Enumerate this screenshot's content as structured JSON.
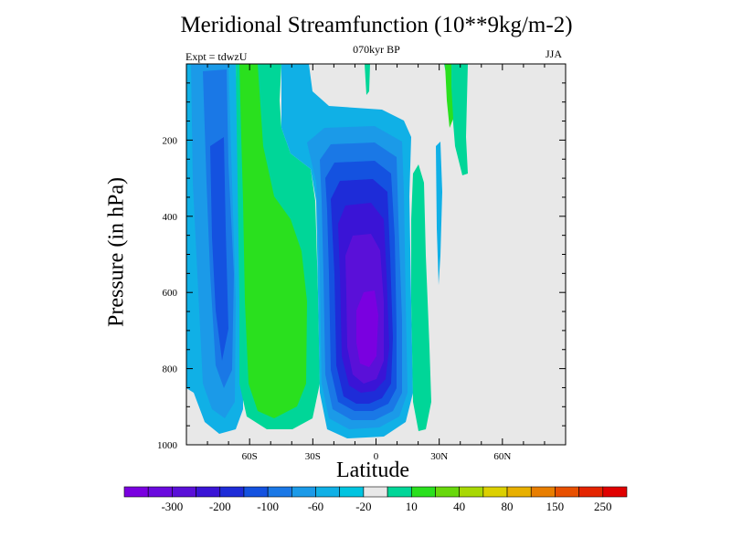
{
  "title": "Meridional Streamfunction (10**9kg/m-2)",
  "subtitle": "070kyr BP",
  "experiment_label": "Expt = tdwzU",
  "season": "JJA",
  "chart_data": {
    "type": "contour",
    "title": "Meridional Streamfunction (10**9kg/m-2)",
    "xlabel": "Latitude",
    "ylabel": "Pressure (in hPa)",
    "xlim": [
      -90,
      90
    ],
    "ylim": [
      1000,
      0
    ],
    "x_ticks": [
      {
        "value": -60,
        "label": "60S"
      },
      {
        "value": -30,
        "label": "30S"
      },
      {
        "value": 0,
        "label": "0"
      },
      {
        "value": 30,
        "label": "30N"
      },
      {
        "value": 60,
        "label": "60N"
      }
    ],
    "y_ticks": [
      {
        "value": 200,
        "label": "200"
      },
      {
        "value": 400,
        "label": "400"
      },
      {
        "value": 600,
        "label": "600"
      },
      {
        "value": 800,
        "label": "800"
      },
      {
        "value": 1000,
        "label": "1000"
      }
    ],
    "background_color": "#e8e8e8",
    "colorbar": {
      "colors": [
        "#7a00e0",
        "#6a0ade",
        "#5a10d8",
        "#3a14d6",
        "#1e2cd8",
        "#1452e0",
        "#1a78e6",
        "#1b9ae8",
        "#10b0e6",
        "#00c4e0",
        "#e8e8e8",
        "#00d698",
        "#2ae01e",
        "#68d80c",
        "#a8d804",
        "#dcd000",
        "#e8b000",
        "#e87e00",
        "#e85000",
        "#e42400",
        "#e00000"
      ],
      "labels": [
        {
          "text": "-300",
          "after_box": 1
        },
        {
          "text": "-200",
          "after_box": 3
        },
        {
          "text": "-100",
          "after_box": 5
        },
        {
          "text": "-60",
          "after_box": 7
        },
        {
          "text": "-20",
          "after_box": 9
        },
        {
          "text": "10",
          "after_box": 11
        },
        {
          "text": "40",
          "after_box": 13
        },
        {
          "text": "80",
          "after_box": 15
        },
        {
          "text": "150",
          "after_box": 17
        },
        {
          "text": "250",
          "after_box": 19
        }
      ]
    },
    "regions": [
      {
        "name": "southern-hemisphere-negative-cell",
        "sign": "negative",
        "lat_range": [
          -88,
          -63
        ],
        "min_value_class": -100
      },
      {
        "name": "southern-midlatitude-positive-cell",
        "sign": "positive",
        "lat_range": [
          -63,
          -25
        ],
        "max_value_class": 40
      },
      {
        "name": "tropical-negative-hadley-cell",
        "sign": "negative",
        "lat_range": [
          -28,
          18
        ],
        "min_value_class": -300
      },
      {
        "name": "northern-subtropical-positive-cell",
        "sign": "positive",
        "lat_range": [
          13,
          30
        ],
        "max_value_class": 10
      }
    ]
  }
}
